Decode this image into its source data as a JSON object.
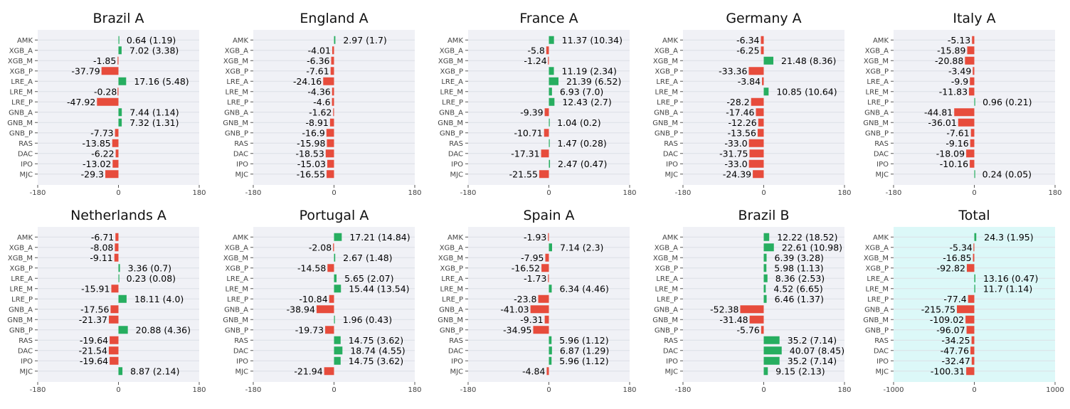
{
  "colors": {
    "positive": "#27ae60",
    "negative": "#e74c3c",
    "panel_bg": "#f0f1f6",
    "total_bg": "#dcf8f8",
    "grid": "#dcdfe6"
  },
  "categories": [
    "AMK",
    "XGB_A",
    "XGB_M",
    "XGB_P",
    "LRE_A",
    "LRE_M",
    "LRE_P",
    "GNB_A",
    "GNB_M",
    "GNB_P",
    "RAS",
    "DAC",
    "IPO",
    "MJC"
  ],
  "chart_data": [
    {
      "type": "bar",
      "orientation": "horizontal",
      "title": "Brazil A",
      "xlim": [
        -180,
        180
      ],
      "xticks": [
        -180,
        0,
        180
      ],
      "values": [
        0.64,
        7.02,
        -1.85,
        -37.79,
        17.16,
        -0.28,
        -47.92,
        7.44,
        7.32,
        -7.73,
        -13.85,
        -6.22,
        -13.02,
        -29.3
      ],
      "labels": [
        "0.64 (1.19)",
        "7.02 (3.38)",
        "-1.85",
        "-37.79",
        "17.16 (5.48)",
        "-0.28",
        "-47.92",
        "7.44 (1.14)",
        "7.32 (1.31)",
        "-7.73",
        "-13.85",
        "-6.22",
        "-13.02",
        "-29.3"
      ]
    },
    {
      "type": "bar",
      "orientation": "horizontal",
      "title": "England A",
      "xlim": [
        -180,
        180
      ],
      "xticks": [
        -180,
        0,
        180
      ],
      "values": [
        2.97,
        -4.01,
        -6.36,
        -7.61,
        -24.16,
        -4.36,
        -4.6,
        -1.62,
        -8.91,
        -16.9,
        -15.98,
        -18.53,
        -15.03,
        -16.55
      ],
      "labels": [
        "2.97 (1.7)",
        "-4.01",
        "-6.36",
        "-7.61",
        "-24.16",
        "-4.36",
        "-4.6",
        "-1.62",
        "-8.91",
        "-16.9",
        "-15.98",
        "-18.53",
        "-15.03",
        "-16.55"
      ]
    },
    {
      "type": "bar",
      "orientation": "horizontal",
      "title": "France A",
      "xlim": [
        -180,
        180
      ],
      "xticks": [
        -180,
        0,
        180
      ],
      "values": [
        11.37,
        -5.8,
        -1.24,
        11.19,
        21.39,
        6.93,
        12.43,
        -9.39,
        1.04,
        -10.71,
        1.47,
        -17.31,
        2.47,
        -21.55
      ],
      "labels": [
        "11.37 (10.34)",
        "-5.8",
        "-1.24",
        "11.19 (2.34)",
        "21.39 (6.52)",
        "6.93 (7.0)",
        "12.43 (2.7)",
        "-9.39",
        "1.04 (0.2)",
        "-10.71",
        "1.47 (0.28)",
        "-17.31",
        "2.47 (0.47)",
        "-21.55"
      ]
    },
    {
      "type": "bar",
      "orientation": "horizontal",
      "title": "Germany A",
      "xlim": [
        -180,
        180
      ],
      "xticks": [
        -180,
        0,
        180
      ],
      "values": [
        -6.34,
        -6.25,
        21.48,
        -33.36,
        -3.84,
        10.85,
        -28.2,
        -17.46,
        -12.26,
        -13.56,
        -33.0,
        -31.75,
        -33.0,
        -24.39
      ],
      "labels": [
        "-6.34",
        "-6.25",
        "21.48 (8.36)",
        "-33.36",
        "-3.84",
        "10.85 (10.64)",
        "-28.2",
        "-17.46",
        "-12.26",
        "-13.56",
        "-33.0",
        "-31.75",
        "-33.0",
        "-24.39"
      ]
    },
    {
      "type": "bar",
      "orientation": "horizontal",
      "title": "Italy A",
      "xlim": [
        -180,
        180
      ],
      "xticks": [
        -180,
        0,
        180
      ],
      "values": [
        -5.13,
        -15.89,
        -20.88,
        -3.49,
        -9.9,
        -11.83,
        0.96,
        -44.81,
        -36.01,
        -7.61,
        -9.16,
        -18.09,
        -10.16,
        0.24
      ],
      "labels": [
        "-5.13",
        "-15.89",
        "-20.88",
        "-3.49",
        "-9.9",
        "-11.83",
        "0.96 (0.21)",
        "-44.81",
        "-36.01",
        "-7.61",
        "-9.16",
        "-18.09",
        "-10.16",
        "0.24 (0.05)"
      ]
    },
    {
      "type": "bar",
      "orientation": "horizontal",
      "title": "Netherlands A",
      "xlim": [
        -180,
        180
      ],
      "xticks": [
        -180,
        0,
        180
      ],
      "values": [
        -6.71,
        -8.08,
        -9.11,
        3.36,
        0.23,
        -15.91,
        18.11,
        -17.56,
        -21.37,
        20.88,
        -19.64,
        -21.54,
        -19.64,
        8.87
      ],
      "labels": [
        "-6.71",
        "-8.08",
        "-9.11",
        "3.36 (0.7)",
        "0.23 (0.08)",
        "-15.91",
        "18.11 (4.0)",
        "-17.56",
        "-21.37",
        "20.88 (4.36)",
        "-19.64",
        "-21.54",
        "-19.64",
        "8.87 (2.14)"
      ]
    },
    {
      "type": "bar",
      "orientation": "horizontal",
      "title": "Portugal A",
      "xlim": [
        -180,
        180
      ],
      "xticks": [
        -180,
        0,
        180
      ],
      "values": [
        17.21,
        -2.08,
        2.67,
        -14.58,
        5.65,
        15.44,
        -10.84,
        -38.94,
        1.96,
        -19.73,
        14.75,
        18.74,
        14.75,
        -21.94
      ],
      "labels": [
        "17.21 (14.84)",
        "-2.08",
        "2.67 (1.48)",
        "-14.58",
        "5.65 (2.07)",
        "15.44 (13.54)",
        "-10.84",
        "-38.94",
        "1.96 (0.43)",
        "-19.73",
        "14.75 (3.62)",
        "18.74 (4.55)",
        "14.75 (3.62)",
        "-21.94"
      ]
    },
    {
      "type": "bar",
      "orientation": "horizontal",
      "title": "Spain A",
      "xlim": [
        -180,
        180
      ],
      "xticks": [
        -180,
        0,
        180
      ],
      "values": [
        -1.93,
        7.14,
        -7.95,
        -16.52,
        -1.73,
        6.34,
        -23.8,
        -41.03,
        -9.31,
        -34.95,
        5.96,
        6.87,
        5.96,
        -4.84
      ],
      "labels": [
        "-1.93",
        "7.14 (2.3)",
        "-7.95",
        "-16.52",
        "-1.73",
        "6.34 (4.46)",
        "-23.8",
        "-41.03",
        "-9.31",
        "-34.95",
        "5.96 (1.12)",
        "6.87 (1.29)",
        "5.96 (1.12)",
        "-4.84"
      ]
    },
    {
      "type": "bar",
      "orientation": "horizontal",
      "title": "Brazil B",
      "xlim": [
        -180,
        180
      ],
      "xticks": [
        -180,
        0,
        180
      ],
      "values": [
        12.22,
        22.61,
        6.39,
        5.98,
        8.36,
        4.52,
        6.46,
        -52.38,
        -31.48,
        -5.76,
        35.2,
        40.07,
        35.2,
        9.15
      ],
      "labels": [
        "12.22 (18.52)",
        "22.61 (10.98)",
        "6.39 (3.28)",
        "5.98 (1.13)",
        "8.36 (2.53)",
        "4.52 (6.65)",
        "6.46 (1.37)",
        "-52.38",
        "-31.48",
        "-5.76",
        "35.2 (7.14)",
        "40.07 (8.45)",
        "35.2 (7.14)",
        "9.15 (2.13)"
      ]
    },
    {
      "type": "bar",
      "orientation": "horizontal",
      "title": "Total",
      "xlim": [
        -1000,
        1000
      ],
      "xticks": [
        -1000,
        0,
        1000
      ],
      "values": [
        24.3,
        -5.34,
        -16.85,
        -92.82,
        13.16,
        11.7,
        -77.4,
        -215.75,
        -109.02,
        -96.07,
        -34.25,
        -47.76,
        -32.47,
        -100.31
      ],
      "labels": [
        "24.3 (1.95)",
        "-5.34",
        "-16.85",
        "-92.82",
        "13.16 (0.47)",
        "11.7 (1.14)",
        "-77.4",
        "-215.75",
        "-109.02",
        "-96.07",
        "-34.25",
        "-47.76",
        "-32.47",
        "-100.31"
      ]
    }
  ]
}
